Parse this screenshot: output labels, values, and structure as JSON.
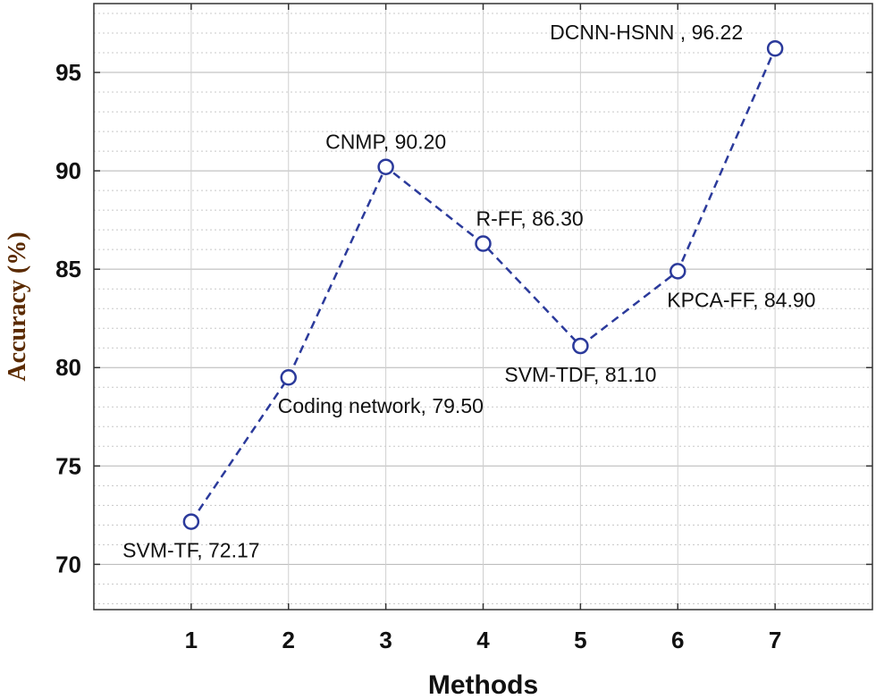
{
  "chart_data": {
    "type": "line",
    "title": "",
    "xlabel": "Methods",
    "ylabel": "Accuracy (%)",
    "x": [
      1,
      2,
      3,
      4,
      5,
      6,
      7
    ],
    "x_tick_labels": [
      "1",
      "2",
      "3",
      "4",
      "5",
      "6",
      "7"
    ],
    "xlim": [
      0,
      8
    ],
    "ylim": [
      67.7,
      98.5
    ],
    "y_ticks": [
      70,
      75,
      80,
      85,
      90,
      95
    ],
    "y_tick_labels": [
      "70",
      "75",
      "80",
      "85",
      "90",
      "95"
    ],
    "grid": true,
    "series": [
      {
        "name": "Accuracy",
        "color": "#2b3a9b",
        "line_style": "dashed",
        "marker": "open-circle",
        "values": [
          72.17,
          79.5,
          90.2,
          86.3,
          81.1,
          84.9,
          96.22
        ]
      }
    ],
    "annotations": [
      {
        "x": 1,
        "text": "SVM-TF, 72.17",
        "position": "below"
      },
      {
        "x": 2,
        "text": "Coding network, 79.50",
        "position": "below-right"
      },
      {
        "x": 3,
        "text": "CNMP, 90.20",
        "position": "above"
      },
      {
        "x": 4,
        "text": "R-FF, 86.30",
        "position": "above-right"
      },
      {
        "x": 5,
        "text": "SVM-TDF, 81.10",
        "position": "below"
      },
      {
        "x": 6,
        "text": "KPCA-FF, 84.90",
        "position": "below-right"
      },
      {
        "x": 7,
        "text": "DCNN-HSNN , 96.22",
        "position": "above-left"
      }
    ]
  }
}
